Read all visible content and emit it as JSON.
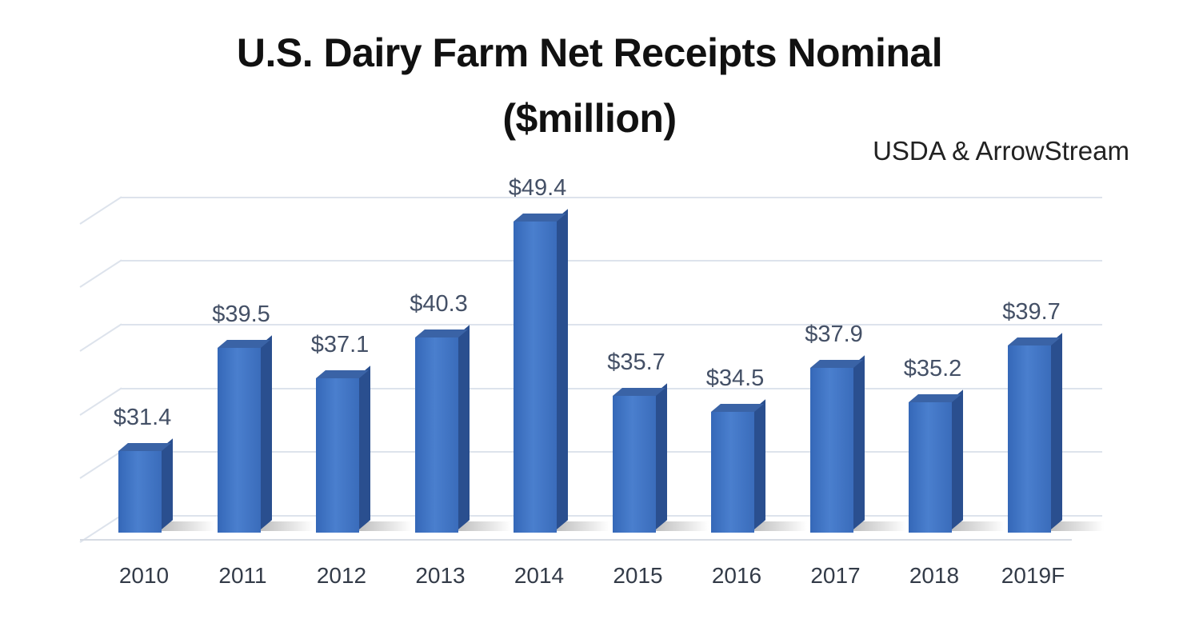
{
  "chart_data": {
    "type": "bar",
    "title": "U.S. Dairy Farm Net Receipts Nominal ($million)",
    "title_lines": [
      "U.S. Dairy Farm Net Receipts Nominal",
      "($million)"
    ],
    "source_note": "USDA & ArrowStream",
    "categories": [
      "2010",
      "2011",
      "2012",
      "2013",
      "2014",
      "2015",
      "2016",
      "2017",
      "2018",
      "2019F"
    ],
    "values": [
      31.4,
      39.5,
      37.1,
      40.3,
      49.4,
      35.7,
      34.5,
      37.9,
      35.2,
      39.7
    ],
    "data_labels": [
      "$31.4",
      "$39.5",
      "$37.1",
      "$40.3",
      "$49.4",
      "$35.7",
      "$34.5",
      "$37.9",
      "$35.2",
      "$39.7"
    ],
    "xlabel": "",
    "ylabel": "",
    "ylim": [
      25,
      50
    ],
    "grid": true,
    "legend": "none",
    "style": "3d-column",
    "bar_color": "#4472c4"
  }
}
